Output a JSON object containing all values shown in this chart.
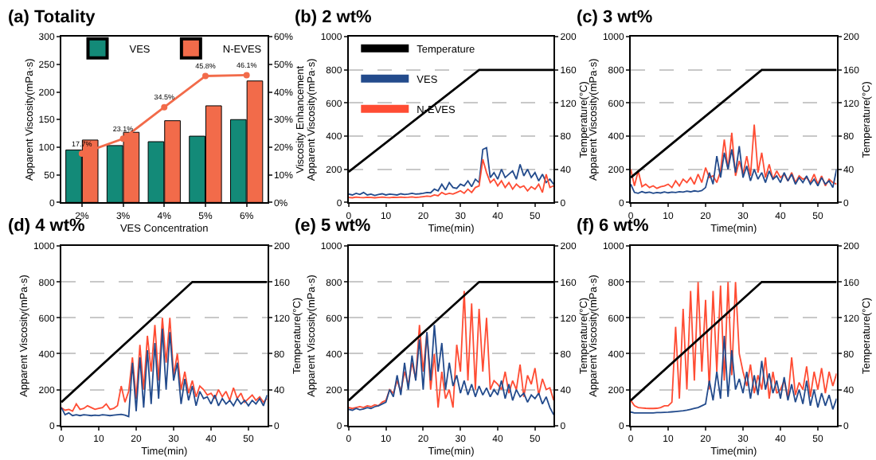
{
  "chart_data": [
    {
      "type": "bar",
      "title": "(a) Totality",
      "xlabel": "VES Concentration",
      "ylabel": "Apparent Viscosity(mPa·s)",
      "y2label": "Viscosity Enhancement",
      "categories": [
        "2%",
        "3%",
        "4%",
        "5%",
        "6%"
      ],
      "series": [
        {
          "name": "VES",
          "color": "#138a78",
          "values": [
            95,
            103,
            110,
            120,
            150
          ]
        },
        {
          "name": "N-EVES",
          "color": "#f26b4a",
          "values": [
            113,
            127,
            148,
            175,
            220
          ]
        },
        {
          "type": "line",
          "axis": "y2",
          "color": "#f26b4a",
          "marker": "circle",
          "values": [
            17.7,
            23.1,
            34.5,
            45.8,
            46.1
          ],
          "value_labels": [
            "17.7%",
            "23.1%",
            "34.5%",
            "45.8%",
            "46.1%"
          ]
        }
      ],
      "ylim": [
        0,
        300
      ],
      "yticks": [
        0,
        50,
        100,
        150,
        200,
        250,
        300
      ],
      "y2lim": [
        0,
        60
      ],
      "y2ticks": [
        {
          "value": 0,
          "label": "0%"
        },
        {
          "value": 10,
          "label": "10%"
        },
        {
          "value": 20,
          "label": "20%"
        },
        {
          "value": 30,
          "label": "30%"
        },
        {
          "value": 40,
          "label": "40%"
        },
        {
          "value": 50,
          "label": "50%"
        },
        {
          "value": 60,
          "label": "60%"
        }
      ],
      "legend": "top left"
    },
    {
      "type": "line",
      "title": "(b) 2 wt%",
      "xlabel": "Time(min)",
      "ylabel": "Apparent Viscosity(mPa·s)",
      "y2label": "Temperature(°C)",
      "x": [
        0,
        1,
        2,
        3,
        4,
        5,
        6,
        7,
        8,
        9,
        10,
        11,
        12,
        13,
        14,
        15,
        16,
        17,
        18,
        19,
        20,
        21,
        22,
        23,
        24,
        25,
        26,
        27,
        28,
        29,
        30,
        31,
        32,
        33,
        34,
        35,
        36,
        37,
        38,
        39,
        40,
        41,
        42,
        43,
        44,
        45,
        46,
        47,
        48,
        49,
        50,
        51,
        52,
        53,
        54,
        55
      ],
      "series": [
        {
          "name": "Temperature",
          "color": "#000000",
          "axis": "y2",
          "x": [
            0,
            35,
            55
          ],
          "values": [
            37,
            160,
            160
          ]
        },
        {
          "name": "VES",
          "color": "#234b8c",
          "values": [
            50,
            45,
            55,
            48,
            60,
            45,
            50,
            42,
            48,
            52,
            45,
            50,
            48,
            45,
            52,
            48,
            50,
            55,
            50,
            52,
            55,
            60,
            58,
            80,
            70,
            110,
            75,
            120,
            90,
            85,
            110,
            100,
            130,
            95,
            140,
            120,
            320,
            330,
            150,
            180,
            140,
            200,
            150,
            170,
            190,
            140,
            230,
            160,
            200,
            150,
            180,
            130,
            170,
            120,
            140,
            110
          ]
        },
        {
          "name": "N-EVES",
          "color": "#ff4c33",
          "values": [
            30,
            28,
            32,
            30,
            29,
            31,
            30,
            28,
            30,
            32,
            30,
            29,
            31,
            30,
            32,
            30,
            31,
            33,
            30,
            32,
            35,
            38,
            36,
            45,
            40,
            60,
            48,
            55,
            50,
            60,
            70,
            55,
            80,
            60,
            90,
            100,
            260,
            180,
            120,
            140,
            100,
            130,
            90,
            120,
            80,
            110,
            90,
            100,
            70,
            95,
            80,
            110,
            60,
            170,
            90,
            100
          ]
        }
      ],
      "xlim": [
        0,
        55
      ],
      "xticks": [
        0,
        10,
        20,
        30,
        40,
        50
      ],
      "ylim": [
        0,
        1000
      ],
      "yticks": [
        0,
        200,
        400,
        600,
        800,
        1000
      ],
      "y2lim": [
        0,
        200
      ],
      "y2ticks": [
        0,
        40,
        80,
        120,
        160,
        200
      ],
      "grid": "y",
      "legend": "top left"
    },
    {
      "type": "line",
      "title": "(c) 3 wt%",
      "xlabel": "Time(min)",
      "ylabel": "Apparent Viscosity(mPa·s)",
      "y2label": "Temperature(°C)",
      "x": [
        0,
        1,
        2,
        3,
        4,
        5,
        6,
        7,
        8,
        9,
        10,
        11,
        12,
        13,
        14,
        15,
        16,
        17,
        18,
        19,
        20,
        21,
        22,
        23,
        24,
        25,
        26,
        27,
        28,
        29,
        30,
        31,
        32,
        33,
        34,
        35,
        36,
        37,
        38,
        39,
        40,
        41,
        42,
        43,
        44,
        45,
        46,
        47,
        48,
        49,
        50,
        51,
        52,
        53,
        54,
        55
      ],
      "series": [
        {
          "color": "#000000",
          "axis": "y2",
          "x": [
            0,
            35,
            55
          ],
          "values": [
            30,
            160,
            160
          ]
        },
        {
          "color": "#ff4c33",
          "values": [
            200,
            100,
            190,
            95,
            110,
            90,
            100,
            85,
            95,
            100,
            110,
            90,
            130,
            100,
            140,
            120,
            150,
            110,
            170,
            120,
            210,
            150,
            160,
            120,
            190,
            380,
            200,
            420,
            160,
            250,
            170,
            280,
            160,
            470,
            180,
            300,
            150,
            230,
            140,
            190,
            150,
            170,
            130,
            180,
            120,
            160,
            140,
            150,
            120,
            170,
            110,
            160,
            100,
            140,
            120,
            110
          ]
        },
        {
          "color": "#234b8c",
          "values": [
            110,
            60,
            55,
            65,
            58,
            62,
            55,
            60,
            57,
            63,
            58,
            62,
            60,
            65,
            62,
            68,
            64,
            70,
            66,
            72,
            90,
            180,
            110,
            280,
            150,
            300,
            200,
            320,
            180,
            340,
            150,
            220,
            130,
            200,
            140,
            180,
            120,
            190,
            140,
            160,
            120,
            180,
            130,
            170,
            110,
            150,
            120,
            160,
            110,
            140,
            100,
            150,
            110,
            130,
            90,
            200
          ]
        }
      ],
      "xlim": [
        0,
        55
      ],
      "xticks": [
        0,
        10,
        20,
        30,
        40,
        50
      ],
      "ylim": [
        0,
        1000
      ],
      "yticks": [
        0,
        200,
        400,
        600,
        800,
        1000
      ],
      "y2lim": [
        0,
        200
      ],
      "y2ticks": [
        0,
        40,
        80,
        120,
        160,
        200
      ],
      "grid": "y"
    },
    {
      "type": "line",
      "title": "(d) 4 wt%",
      "xlabel": "Time(min)",
      "ylabel": "Apparent Viscosity(mPa·s)",
      "y2label": "Temperature(°C)",
      "x": [
        0,
        1,
        2,
        3,
        4,
        5,
        6,
        7,
        8,
        9,
        10,
        11,
        12,
        13,
        14,
        15,
        16,
        17,
        18,
        19,
        20,
        21,
        22,
        23,
        24,
        25,
        26,
        27,
        28,
        29,
        30,
        31,
        32,
        33,
        34,
        35,
        36,
        37,
        38,
        39,
        40,
        41,
        42,
        43,
        44,
        45,
        46,
        47,
        48,
        49,
        50,
        51,
        52,
        53,
        54,
        55
      ],
      "series": [
        {
          "color": "#000000",
          "axis": "y2",
          "x": [
            0,
            35,
            55
          ],
          "values": [
            26,
            160,
            160
          ]
        },
        {
          "color": "#ff4c33",
          "values": [
            100,
            85,
            90,
            80,
            120,
            90,
            95,
            110,
            100,
            90,
            95,
            100,
            120,
            90,
            95,
            110,
            220,
            130,
            190,
            380,
            150,
            450,
            200,
            500,
            300,
            560,
            250,
            600,
            350,
            600,
            280,
            400,
            200,
            300,
            180,
            250,
            160,
            220,
            200,
            170,
            180,
            150,
            200,
            160,
            190,
            140,
            210,
            150,
            180,
            130,
            150,
            170,
            140,
            160,
            130,
            150
          ]
        },
        {
          "color": "#234b8c",
          "values": [
            100,
            60,
            70,
            55,
            60,
            55,
            60,
            58,
            55,
            58,
            56,
            60,
            58,
            55,
            58,
            60,
            62,
            58,
            50,
            350,
            80,
            380,
            100,
            420,
            120,
            460,
            150,
            540,
            200,
            520,
            250,
            350,
            120,
            260,
            140,
            220,
            110,
            190,
            150,
            160,
            120,
            170,
            110,
            150,
            120,
            140,
            110,
            150,
            120,
            140,
            110,
            140,
            120,
            150,
            110,
            170
          ]
        }
      ],
      "xlim": [
        0,
        55
      ],
      "xticks": [
        0,
        10,
        20,
        30,
        40,
        50
      ],
      "ylim": [
        0,
        1000
      ],
      "yticks": [
        0,
        200,
        400,
        600,
        800,
        1000
      ],
      "y2lim": [
        0,
        200
      ],
      "y2ticks": [
        0,
        40,
        80,
        120,
        160,
        200
      ],
      "grid": "y"
    },
    {
      "type": "line",
      "title": "(e) 5 wt%",
      "xlabel": "Time(min)",
      "ylabel": "Apparent Viscosity(mPa·s)",
      "y2label": "Temperature(°C)",
      "x": [
        0,
        1,
        2,
        3,
        4,
        5,
        6,
        7,
        8,
        9,
        10,
        11,
        12,
        13,
        14,
        15,
        16,
        17,
        18,
        19,
        20,
        21,
        22,
        23,
        24,
        25,
        26,
        27,
        28,
        29,
        30,
        31,
        32,
        33,
        34,
        35,
        36,
        37,
        38,
        39,
        40,
        41,
        42,
        43,
        44,
        45,
        46,
        47,
        48,
        49,
        50,
        51,
        52,
        53,
        54,
        55
      ],
      "series": [
        {
          "color": "#000000",
          "axis": "y2",
          "x": [
            0,
            35,
            55
          ],
          "values": [
            28,
            160,
            160
          ]
        },
        {
          "color": "#ff4c33",
          "values": [
            100,
            95,
            100,
            105,
            100,
            110,
            105,
            115,
            110,
            130,
            140,
            200,
            180,
            250,
            190,
            300,
            230,
            350,
            260,
            560,
            300,
            520,
            200,
            400,
            100,
            300,
            150,
            200,
            100,
            450,
            300,
            750,
            250,
            680,
            200,
            650,
            300,
            600,
            200,
            250,
            230,
            200,
            300,
            180,
            250,
            200,
            340,
            160,
            280,
            230,
            320,
            170,
            260,
            200,
            210,
            140
          ]
        },
        {
          "color": "#234b8c",
          "values": [
            90,
            85,
            95,
            88,
            92,
            100,
            95,
            105,
            110,
            120,
            130,
            200,
            160,
            280,
            170,
            350,
            200,
            390,
            250,
            480,
            200,
            520,
            250,
            560,
            300,
            460,
            200,
            350,
            220,
            280,
            180,
            250,
            170,
            230,
            160,
            220,
            170,
            210,
            160,
            200,
            170,
            250,
            150,
            230,
            140,
            200,
            160,
            180,
            130,
            170,
            150,
            180,
            120,
            160,
            100,
            60
          ]
        }
      ],
      "xlim": [
        0,
        55
      ],
      "xticks": [
        0,
        10,
        20,
        30,
        40,
        50
      ],
      "ylim": [
        0,
        1000
      ],
      "yticks": [
        0,
        200,
        400,
        600,
        800,
        1000
      ],
      "y2lim": [
        0,
        200
      ],
      "y2ticks": [
        0,
        40,
        80,
        120,
        160,
        200
      ],
      "grid": "y"
    },
    {
      "type": "line",
      "title": "(f) 6 wt%",
      "xlabel": "Time(min)",
      "ylabel": "Apparent Viscosity(mPa·s)",
      "y2label": "Temperature(°C)",
      "x": [
        0,
        1,
        2,
        3,
        4,
        5,
        6,
        7,
        8,
        9,
        10,
        11,
        12,
        13,
        14,
        15,
        16,
        17,
        18,
        19,
        20,
        21,
        22,
        23,
        24,
        25,
        26,
        27,
        28,
        29,
        30,
        31,
        32,
        33,
        34,
        35,
        36,
        37,
        38,
        39,
        40,
        41,
        42,
        43,
        44,
        45,
        46,
        47,
        48,
        49,
        50,
        51,
        52,
        53,
        54,
        55
      ],
      "series": [
        {
          "color": "#ff4c33",
          "values": [
            140,
            110,
            100,
            98,
            96,
            95,
            95,
            96,
            100,
            110,
            110,
            130,
            550,
            150,
            650,
            200,
            750,
            250,
            800,
            300,
            700,
            200,
            750,
            300,
            780,
            250,
            800,
            280,
            800,
            400,
            300,
            220,
            340,
            180,
            280,
            200,
            380,
            150,
            300,
            180,
            200,
            250,
            150,
            380,
            170,
            240,
            200,
            330,
            160,
            300,
            200,
            320,
            180,
            300,
            220,
            290
          ]
        },
        {
          "color": "#234b8c",
          "values": [
            75,
            70,
            70,
            70,
            70,
            70,
            70,
            72,
            72,
            73,
            74,
            76,
            78,
            80,
            82,
            85,
            90,
            95,
            100,
            110,
            120,
            250,
            140,
            300,
            150,
            500,
            160,
            420,
            200,
            260,
            180,
            300,
            150,
            280,
            170,
            360,
            200,
            290,
            180,
            250,
            150,
            270,
            140,
            230,
            130,
            200,
            120,
            250,
            110,
            200,
            100,
            180,
            110,
            170,
            90,
            150
          ]
        },
        {
          "color": "#000000",
          "axis": "y2",
          "x": [
            0,
            35,
            55
          ],
          "values": [
            28,
            160,
            160
          ]
        }
      ],
      "xlim": [
        0,
        55
      ],
      "xticks": [
        0,
        10,
        20,
        30,
        40,
        50
      ],
      "ylim": [
        0,
        1000
      ],
      "yticks": [
        0,
        200,
        400,
        600,
        800,
        1000
      ],
      "y2lim": [
        0,
        200
      ],
      "y2ticks": [
        0,
        40,
        80,
        120,
        160,
        200
      ],
      "grid": "y"
    }
  ]
}
